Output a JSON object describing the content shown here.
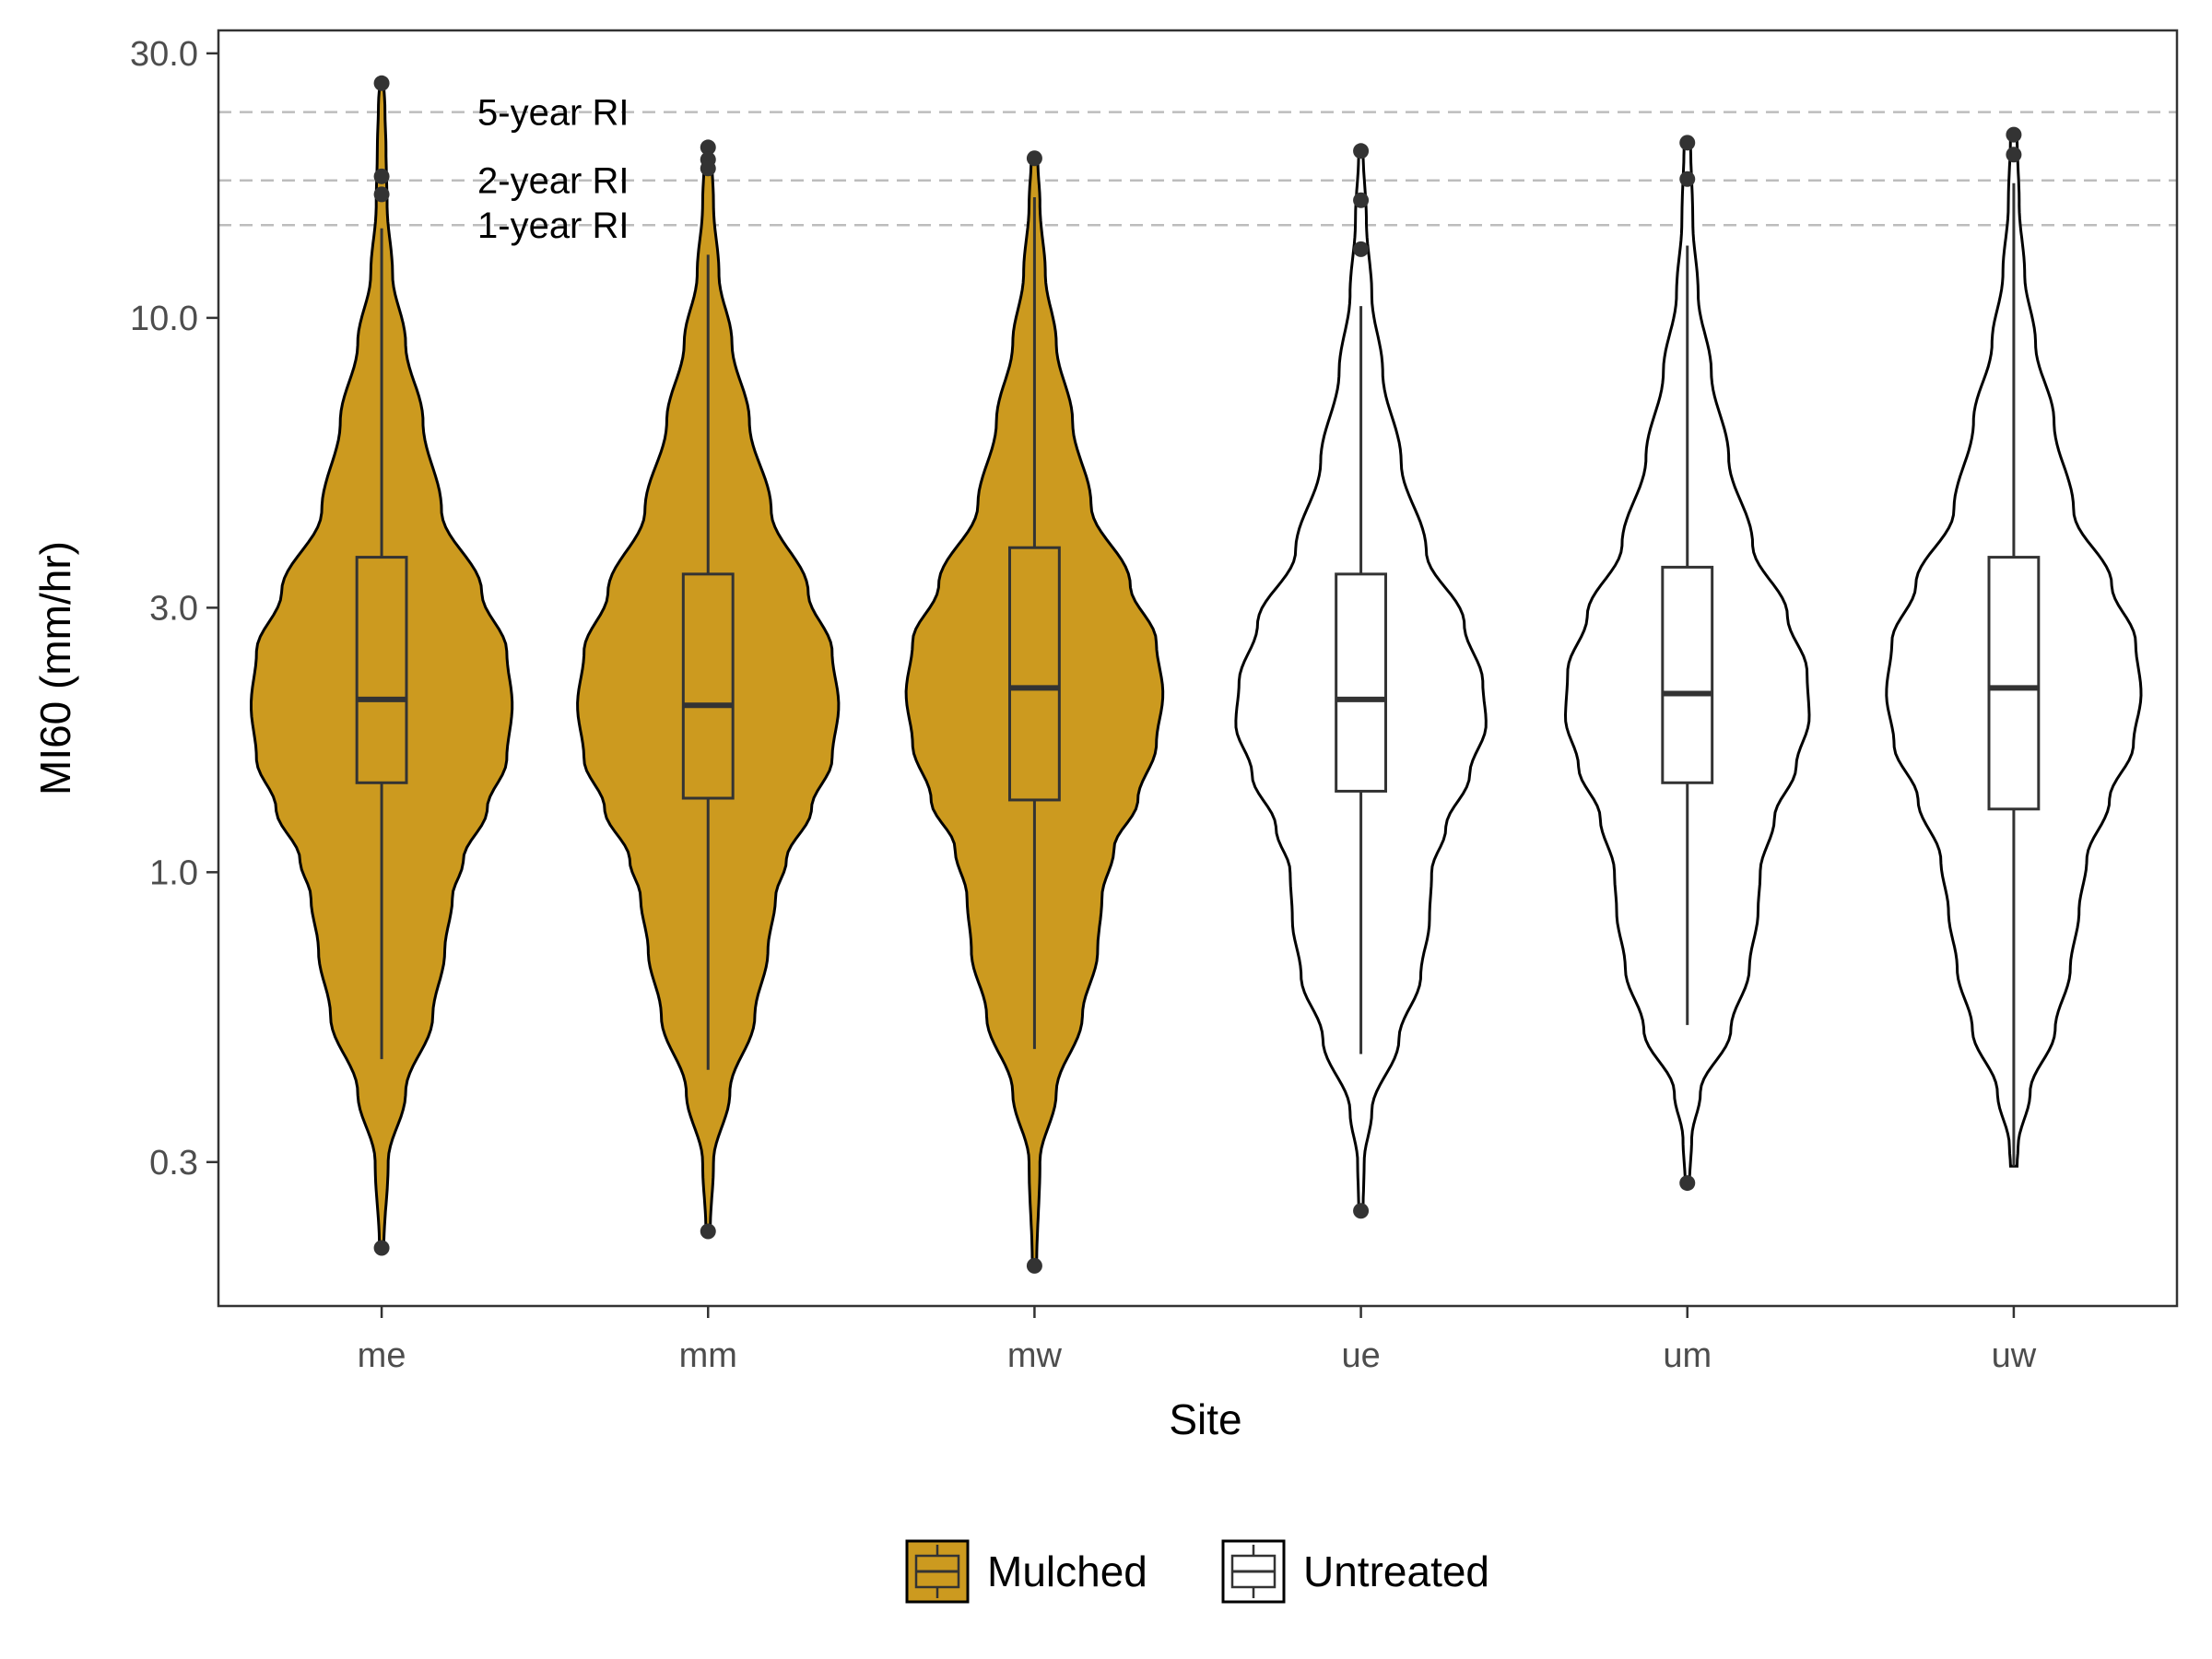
{
  "chart_data": {
    "type": "violin",
    "xlabel": "Site",
    "ylabel": "MI60 (mm/hr)",
    "y_scale": "log10",
    "ylim": [
      0.165,
      33
    ],
    "y_ticks": [
      0.3,
      1.0,
      3.0,
      10.0,
      30.0
    ],
    "y_tick_labels": [
      "0.3",
      "1.0",
      "3.0",
      "10.0",
      "30.0"
    ],
    "grid": false,
    "legend_position": "bottom",
    "legend": [
      {
        "name": "Mulched",
        "color": "#CC9A1F"
      },
      {
        "name": "Untreated",
        "color": "#FFFFFF"
      }
    ],
    "reference_lines": [
      {
        "label": "5-year RI",
        "value": 23.5
      },
      {
        "label": "2-year RI",
        "value": 17.7
      },
      {
        "label": "1-year RI",
        "value": 14.7
      }
    ],
    "categories": [
      "me",
      "mm",
      "mw",
      "ue",
      "um",
      "uw"
    ],
    "series": [
      {
        "site": "me",
        "group": "Mulched",
        "violin_min": 0.21,
        "violin_max": 26.5,
        "box": {
          "lower_whisker": 0.46,
          "q1": 1.45,
          "median": 2.05,
          "q3": 3.7,
          "upper_whisker": 14.5
        },
        "outliers": [
          0.21,
          16.7,
          18.0,
          26.5
        ],
        "density": [
          [
            0.21,
            0.02
          ],
          [
            0.3,
            0.06
          ],
          [
            0.4,
            0.22
          ],
          [
            0.55,
            0.47
          ],
          [
            0.72,
            0.58
          ],
          [
            0.9,
            0.65
          ],
          [
            1.05,
            0.75
          ],
          [
            1.3,
            0.97
          ],
          [
            1.6,
            1.15
          ],
          [
            2.0,
            1.2
          ],
          [
            2.5,
            1.15
          ],
          [
            3.2,
            0.92
          ],
          [
            4.5,
            0.55
          ],
          [
            6.5,
            0.38
          ],
          [
            9.0,
            0.22
          ],
          [
            12.0,
            0.1
          ],
          [
            16.0,
            0.05
          ],
          [
            20.0,
            0.04
          ],
          [
            24.0,
            0.03
          ],
          [
            26.5,
            0.02
          ]
        ]
      },
      {
        "site": "mm",
        "group": "Mulched",
        "violin_min": 0.225,
        "violin_max": 20.3,
        "box": {
          "lower_whisker": 0.44,
          "q1": 1.36,
          "median": 2.0,
          "q3": 3.45,
          "upper_whisker": 13.0
        },
        "outliers": [
          0.225,
          20.3,
          19.3,
          18.6
        ],
        "density": [
          [
            0.225,
            0.02
          ],
          [
            0.3,
            0.05
          ],
          [
            0.4,
            0.2
          ],
          [
            0.55,
            0.43
          ],
          [
            0.72,
            0.55
          ],
          [
            0.9,
            0.62
          ],
          [
            1.05,
            0.72
          ],
          [
            1.3,
            0.95
          ],
          [
            1.6,
            1.14
          ],
          [
            2.0,
            1.2
          ],
          [
            2.5,
            1.14
          ],
          [
            3.2,
            0.92
          ],
          [
            4.5,
            0.58
          ],
          [
            6.5,
            0.38
          ],
          [
            9.0,
            0.22
          ],
          [
            12.0,
            0.1
          ],
          [
            16.0,
            0.05
          ],
          [
            20.3,
            0.03
          ]
        ]
      },
      {
        "site": "mw",
        "group": "Mulched",
        "violin_min": 0.195,
        "violin_max": 19.4,
        "box": {
          "lower_whisker": 0.48,
          "q1": 1.35,
          "median": 2.15,
          "q3": 3.85,
          "upper_whisker": 16.5
        },
        "outliers": [
          0.195,
          19.4
        ],
        "density": [
          [
            0.195,
            0.02
          ],
          [
            0.3,
            0.05
          ],
          [
            0.4,
            0.2
          ],
          [
            0.55,
            0.44
          ],
          [
            0.72,
            0.58
          ],
          [
            0.9,
            0.62
          ],
          [
            1.1,
            0.73
          ],
          [
            1.35,
            0.95
          ],
          [
            1.7,
            1.12
          ],
          [
            2.1,
            1.18
          ],
          [
            2.6,
            1.12
          ],
          [
            3.3,
            0.88
          ],
          [
            4.6,
            0.52
          ],
          [
            6.5,
            0.35
          ],
          [
            9.0,
            0.2
          ],
          [
            12.0,
            0.1
          ],
          [
            16.0,
            0.05
          ],
          [
            19.4,
            0.03
          ]
        ]
      },
      {
        "site": "ue",
        "group": "Untreated",
        "violin_min": 0.245,
        "violin_max": 20.0,
        "box": {
          "lower_whisker": 0.47,
          "q1": 1.4,
          "median": 2.05,
          "q3": 3.45,
          "upper_whisker": 10.5
        },
        "outliers": [
          0.245,
          20.0,
          16.3,
          13.3
        ],
        "density": [
          [
            0.245,
            0.02
          ],
          [
            0.3,
            0.03
          ],
          [
            0.37,
            0.1
          ],
          [
            0.5,
            0.35
          ],
          [
            0.65,
            0.55
          ],
          [
            0.82,
            0.63
          ],
          [
            1.0,
            0.65
          ],
          [
            1.2,
            0.78
          ],
          [
            1.5,
            1.0
          ],
          [
            1.85,
            1.15
          ],
          [
            2.2,
            1.12
          ],
          [
            2.8,
            0.95
          ],
          [
            3.8,
            0.6
          ],
          [
            5.5,
            0.37
          ],
          [
            8.0,
            0.2
          ],
          [
            11.0,
            0.1
          ],
          [
            15.0,
            0.05
          ],
          [
            20.0,
            0.02
          ]
        ]
      },
      {
        "site": "um",
        "group": "Untreated",
        "violin_min": 0.275,
        "violin_max": 20.7,
        "box": {
          "lower_whisker": 0.53,
          "q1": 1.45,
          "median": 2.1,
          "q3": 3.55,
          "upper_whisker": 13.5
        },
        "outliers": [
          0.275,
          20.7,
          17.8
        ],
        "density": [
          [
            0.275,
            0.02
          ],
          [
            0.33,
            0.04
          ],
          [
            0.4,
            0.12
          ],
          [
            0.52,
            0.4
          ],
          [
            0.67,
            0.57
          ],
          [
            0.85,
            0.65
          ],
          [
            1.0,
            0.67
          ],
          [
            1.25,
            0.8
          ],
          [
            1.55,
            1.0
          ],
          [
            1.9,
            1.12
          ],
          [
            2.3,
            1.1
          ],
          [
            2.9,
            0.92
          ],
          [
            3.9,
            0.6
          ],
          [
            5.6,
            0.38
          ],
          [
            8.0,
            0.22
          ],
          [
            11.0,
            0.1
          ],
          [
            15.0,
            0.05
          ],
          [
            20.7,
            0.03
          ]
        ]
      },
      {
        "site": "uw",
        "group": "Untreated",
        "violin_min": 0.295,
        "violin_max": 21.4,
        "box": {
          "lower_whisker": 0.295,
          "q1": 1.3,
          "median": 2.15,
          "q3": 3.7,
          "upper_whisker": 17.5
        },
        "outliers": [
          21.4,
          19.7
        ],
        "density": [
          [
            0.295,
            0.03
          ],
          [
            0.32,
            0.04
          ],
          [
            0.4,
            0.15
          ],
          [
            0.52,
            0.38
          ],
          [
            0.67,
            0.52
          ],
          [
            0.85,
            0.6
          ],
          [
            1.05,
            0.67
          ],
          [
            1.35,
            0.88
          ],
          [
            1.7,
            1.1
          ],
          [
            2.1,
            1.17
          ],
          [
            2.6,
            1.12
          ],
          [
            3.3,
            0.9
          ],
          [
            4.5,
            0.55
          ],
          [
            6.5,
            0.37
          ],
          [
            9.0,
            0.2
          ],
          [
            12.0,
            0.1
          ],
          [
            16.0,
            0.05
          ],
          [
            21.4,
            0.03
          ]
        ]
      }
    ]
  }
}
